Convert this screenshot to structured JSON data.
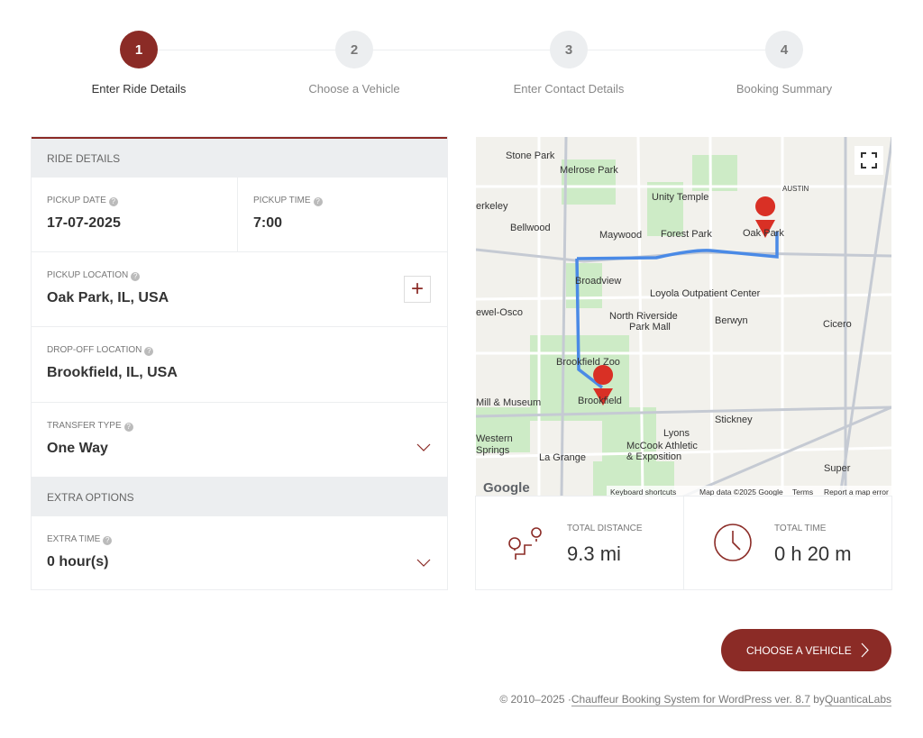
{
  "steps": [
    {
      "number": "1",
      "label": "Enter Ride Details"
    },
    {
      "number": "2",
      "label": "Choose a Vehicle"
    },
    {
      "number": "3",
      "label": "Enter Contact Details"
    },
    {
      "number": "4",
      "label": "Booking Summary"
    }
  ],
  "ride_details": {
    "header": "RIDE DETAILS",
    "pickup_date": {
      "label": "PICKUP DATE",
      "value": "17-07-2025"
    },
    "pickup_time": {
      "label": "PICKUP TIME",
      "value": "7:00"
    },
    "pickup_location": {
      "label": "PICKUP LOCATION",
      "value": "Oak Park, IL, USA"
    },
    "dropoff_location": {
      "label": "DROP-OFF LOCATION",
      "value": "Brookfield, IL, USA"
    },
    "transfer_type": {
      "label": "TRANSFER TYPE",
      "value": "One Way"
    }
  },
  "extra_options": {
    "header": "EXTRA OPTIONS",
    "extra_time": {
      "label": "EXTRA TIME",
      "value": "0 hour(s)"
    }
  },
  "map": {
    "labels": [
      "Stone Park",
      "Melrose Park",
      "Unity Temple",
      "erkeley",
      "Bellwood",
      "Maywood",
      "Forest Park",
      "Oak Park",
      "AUSTIN",
      "Broadview",
      "Loyola Outpatient Center",
      "North Riverside",
      "Park Mall",
      "Berwyn",
      "Cicero",
      "ewel-Osco",
      "Brookfield Zoo",
      "Brookfield",
      "Mill & Museum",
      "Stickney",
      "Lyons",
      "Western",
      "Springs",
      "McCook Athletic",
      "& Exposition",
      "La Grange",
      "Super"
    ],
    "logo": "Google",
    "attribution": [
      "Keyboard shortcuts",
      "Map data ©2025 Google",
      "Terms",
      "Report a map error"
    ]
  },
  "stats": [
    {
      "label": "TOTAL DISTANCE",
      "value": "9.3 mi"
    },
    {
      "label": "TOTAL TIME",
      "value": "0 h 20 m"
    }
  ],
  "button": "CHOOSE A VEHICLE",
  "footer": {
    "prefix": "© 2010–2025 ·",
    "link": "Chauffeur Booking System for WordPress ver. 8.7",
    "by": "by",
    "author": "QuanticaLabs"
  }
}
